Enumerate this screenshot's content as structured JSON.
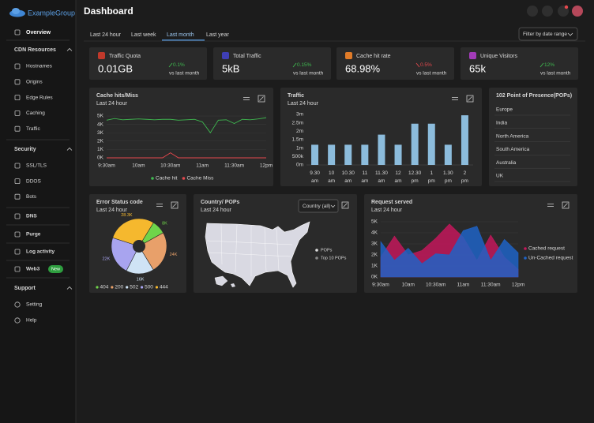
{
  "sidebar": {
    "logo": "ExampleGroup",
    "overview": "Overview",
    "groups": [
      {
        "title": "CDN Resources",
        "items": [
          "Hostnames",
          "Origins",
          "Edge Rules",
          "Caching",
          "Traffic"
        ]
      },
      {
        "title": "Security",
        "items": [
          "SSL/TLS",
          "DDOS",
          "Bots"
        ]
      }
    ],
    "links": [
      "DNS",
      "Purge",
      "Log activity",
      "Web3"
    ],
    "badge": "New",
    "support": {
      "title": "Support",
      "items": [
        "Setting",
        "Help"
      ]
    }
  },
  "header": {
    "title": "Dashboard"
  },
  "tabs": {
    "items": [
      "Last 24 hour",
      "Last week",
      "Last month",
      "Last year"
    ],
    "active": 2,
    "filter": "Filter by date range"
  },
  "stats": [
    {
      "label": "Traffic Quota",
      "value": "0.01GB",
      "change": "0.1%",
      "trend": "up",
      "note": "vs last month",
      "color": "#c0392b"
    },
    {
      "label": "Total Traffic",
      "value": "5kB",
      "change": "0.15%",
      "trend": "up",
      "note": "vs last month",
      "color": "#3f3fb5"
    },
    {
      "label": "Cache hit rate",
      "value": "68.98%",
      "change": "0.5%",
      "trend": "down",
      "note": "vs last month",
      "color": "#e07b28"
    },
    {
      "label": "Unique Visitors",
      "value": "65k",
      "change": "12%",
      "trend": "up",
      "note": "vs last month",
      "color": "#a23bb8"
    }
  ],
  "chart_data": [
    {
      "type": "line",
      "title": "Cache hits/Miss",
      "subtitle": "Last 24 hour",
      "categories": [
        "9:30am",
        null,
        null,
        null,
        "10am",
        null,
        null,
        null,
        "10:30am",
        null,
        null,
        null,
        "11am",
        null,
        null,
        null,
        "11:30am",
        null,
        null,
        null,
        "12pm"
      ],
      "series": [
        {
          "name": "Cache hit",
          "color": "#3fb950",
          "values": [
            4500,
            4700,
            4550,
            4600,
            4650,
            4600,
            4550,
            4600,
            4600,
            4500,
            4550,
            4600,
            4300,
            3000,
            4500,
            4550,
            4100,
            4600,
            4550,
            4650,
            4800
          ]
        },
        {
          "name": "Cache Miss",
          "color": "#e5484d",
          "values": [
            0,
            0,
            0,
            0,
            0,
            0,
            0,
            0,
            600,
            0,
            0,
            0,
            0,
            0,
            0,
            0,
            0,
            0,
            0,
            0,
            0
          ]
        }
      ],
      "ylim": [
        0,
        5000
      ],
      "yticks": [
        {
          "value": 0,
          "label": "0K"
        },
        {
          "value": 1000,
          "label": "1K"
        },
        {
          "value": 2000,
          "label": "2K"
        },
        {
          "value": 3000,
          "label": "3K"
        },
        {
          "value": 4000,
          "label": "4K"
        },
        {
          "value": 5000,
          "label": "5K"
        }
      ],
      "grid": true,
      "legend": "bottom"
    },
    {
      "type": "bar",
      "title": "Traffic",
      "subtitle": "Last 24 hour",
      "categories": [
        "9.30 am",
        "10 am",
        "10.30 am",
        "11 am",
        "11.30 am",
        "12 am",
        "12.30 pm",
        "1 pm",
        "1.30 pm",
        "2 pm"
      ],
      "values": [
        1200000,
        1200000,
        1200000,
        1200000,
        1800000,
        1200000,
        2450000,
        2450000,
        1200000,
        2950000
      ],
      "color": "#8cbcdc",
      "ylim": [
        0,
        3000000
      ],
      "yticks": [
        {
          "value": 0,
          "label": "0m"
        },
        {
          "value": 500000,
          "label": "500k"
        },
        {
          "value": 1000000,
          "label": "1m"
        },
        {
          "value": 1500000,
          "label": "1.5m"
        },
        {
          "value": 2000000,
          "label": "2m"
        },
        {
          "value": 2500000,
          "label": "2.5m"
        },
        {
          "value": 3000000,
          "label": "3m"
        }
      ],
      "grid": false
    },
    {
      "type": "pie",
      "title": "Error Status code",
      "subtitle": "Last 24 hour",
      "categories": [
        "404",
        "200",
        "502",
        "500",
        "444"
      ],
      "values": [
        8000,
        24000,
        16000,
        22000,
        28300
      ],
      "value_labels": [
        "8K",
        "24K",
        "16K",
        "22K",
        "28.3K"
      ],
      "colors": [
        "#6fd44a",
        "#e8a06a",
        "#cfe3f5",
        "#a8a4ef",
        "#f5b82e"
      ],
      "legend": "bottom"
    },
    {
      "type": "area",
      "title": "Request served",
      "subtitle": "Last 24 hour",
      "categories": [
        "9:30am",
        null,
        "10am",
        null,
        "10:30am",
        null,
        "11am",
        null,
        "11:30am",
        null,
        "12pm"
      ],
      "series": [
        {
          "name": "Cached request",
          "color": "#c2185b",
          "values": [
            1800,
            3700,
            2000,
            2400,
            3500,
            4800,
            3600,
            1500,
            3800,
            1800,
            700
          ]
        },
        {
          "name": "Un-Cached request",
          "color": "#1f63c6",
          "values": [
            3200,
            1500,
            2600,
            1200,
            2100,
            2000,
            4200,
            4600,
            1500,
            3400,
            2200
          ]
        }
      ],
      "ylim": [
        0,
        5000
      ],
      "yticks": [
        {
          "value": 0,
          "label": "0K"
        },
        {
          "value": 1000,
          "label": "1K"
        },
        {
          "value": 2000,
          "label": "2K"
        },
        {
          "value": 3000,
          "label": "3K"
        },
        {
          "value": 4000,
          "label": "4K"
        },
        {
          "value": 5000,
          "label": "5K"
        }
      ],
      "grid": true,
      "legend": "right"
    }
  ],
  "map": {
    "title": "Country/ POPs",
    "subtitle": "Last 24 hour",
    "dropdown": "Country (all)",
    "legend": [
      "POPs",
      "Top 10 POPs"
    ]
  },
  "pops": {
    "title": "102 Point of Presence(POPs)",
    "items": [
      "Europe",
      "India",
      "North America",
      "South America",
      "Australia",
      "UK"
    ]
  }
}
